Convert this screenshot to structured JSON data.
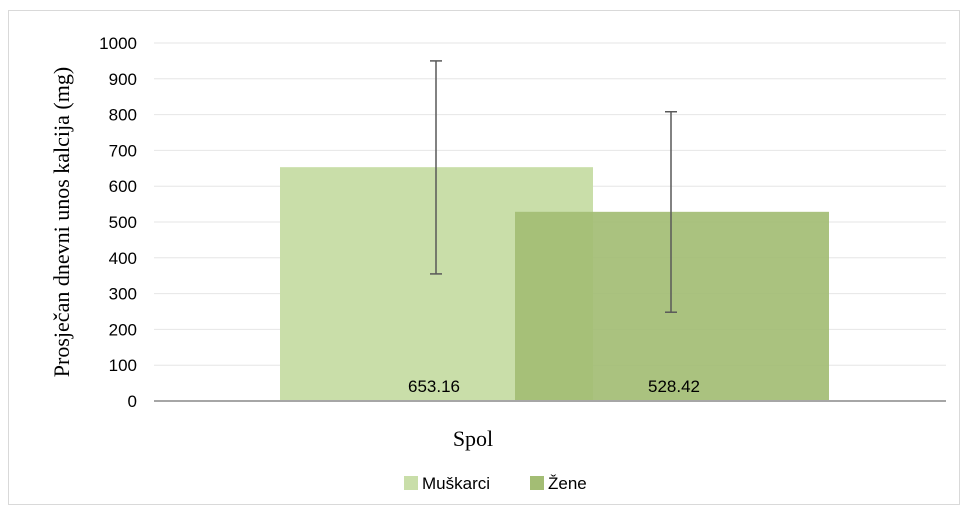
{
  "chart_data": {
    "type": "bar",
    "title": "",
    "categories": [
      "Spol"
    ],
    "xlabel": "Spol",
    "ylabel": "Prosječan dnevni unos kalcija (mg)",
    "ylim": [
      0,
      1000
    ],
    "y_ticks": [
      0,
      100,
      200,
      300,
      400,
      500,
      600,
      700,
      800,
      900,
      1000
    ],
    "grid": true,
    "legend_position": "bottom",
    "series": [
      {
        "name": "Muškarci",
        "values": [
          653.16
        ],
        "data_labels": [
          "653.16"
        ],
        "error_low": [
          355
        ],
        "error_high": [
          950
        ],
        "color": "#c9dea9"
      },
      {
        "name": "Žene",
        "values": [
          528.42
        ],
        "data_labels": [
          "528.42"
        ],
        "error_low": [
          248
        ],
        "error_high": [
          808
        ],
        "color": "#a3bd74"
      }
    ]
  }
}
